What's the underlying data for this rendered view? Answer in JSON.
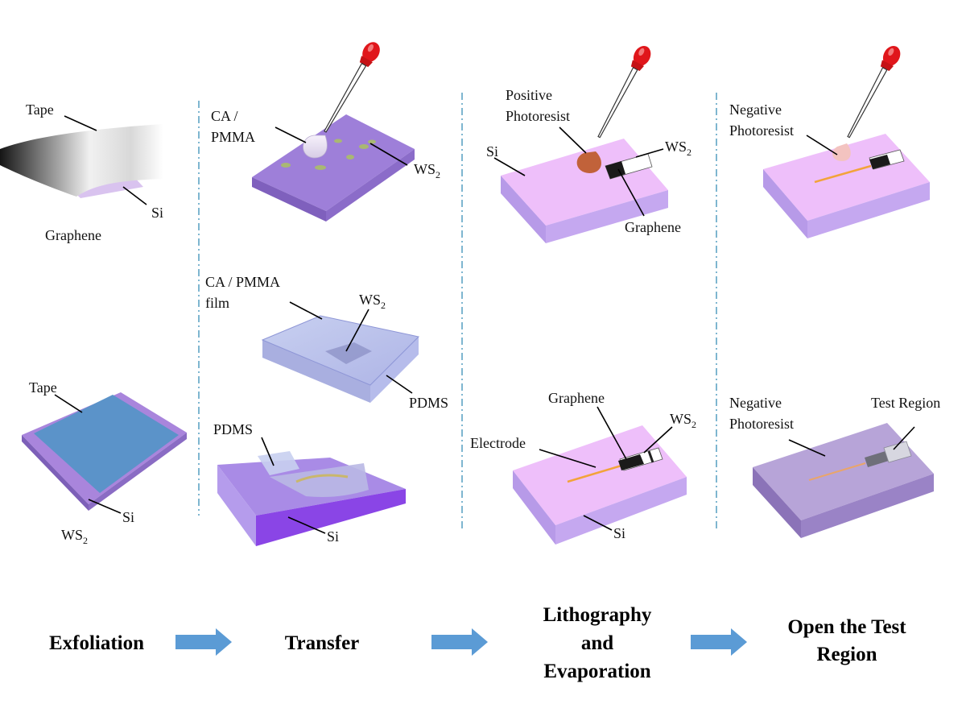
{
  "columns": {
    "exfoliation": {
      "top": {
        "tape": "Tape",
        "si": "Si",
        "graphene": "Graphene"
      },
      "bottom": {
        "tape": "Tape",
        "si": "Si",
        "ws2_main": "WS",
        "ws2_sub": "2"
      }
    },
    "transfer": {
      "top": {
        "ca_pmma_line1": "CA /",
        "ca_pmma_line2": "PMMA",
        "ws2_main": "WS",
        "ws2_sub": "2"
      },
      "middle": {
        "film_line1": "CA / PMMA",
        "film_line2": "film",
        "ws2_main": "WS",
        "ws2_sub": "2",
        "pdms": "PDMS"
      },
      "bottom": {
        "pdms": "PDMS",
        "si": "Si"
      }
    },
    "lithography": {
      "top": {
        "positive_line1": "Positive",
        "positive_line2": "Photoresist",
        "si": "Si",
        "ws2_main": "WS",
        "ws2_sub": "2",
        "graphene": "Graphene"
      },
      "bottom": {
        "graphene": "Graphene",
        "ws2_main": "WS",
        "ws2_sub": "2",
        "electrode": "Electrode",
        "si": "Si"
      }
    },
    "open_region": {
      "top": {
        "negative_line1": "Negative",
        "negative_line2": "Photoresist"
      },
      "bottom": {
        "negative_line1": "Negative",
        "negative_line2": "Photoresist",
        "test_region": "Test Region"
      }
    }
  },
  "stages": {
    "exfoliation": "Exfoliation",
    "transfer": "Transfer",
    "lithography_line1": "Lithography",
    "lithography_line2": "and",
    "lithography_line3": "Evaporation",
    "open_line1": "Open the Test",
    "open_line2": "Region"
  },
  "colors": {
    "substrate_purple": "#9e7fd9",
    "light_substrate": "#e8baf4",
    "tape_blue": "#5b93c9",
    "arrow_blue": "#5b9bd5",
    "dropper_red": "#e0161b",
    "divider_blue": "#3a8fb7",
    "electrode_orange": "#f2a33a"
  }
}
